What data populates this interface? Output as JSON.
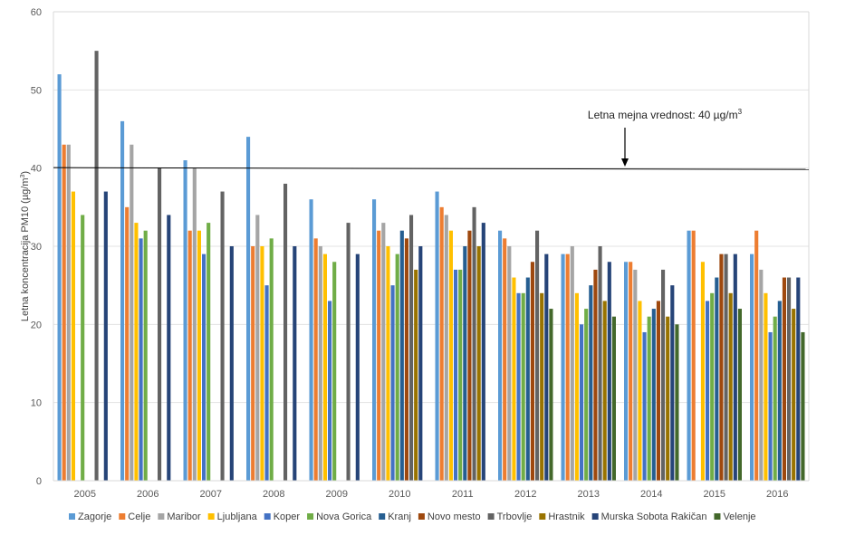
{
  "chart_data": {
    "type": "bar",
    "categories": [
      "2005",
      "2006",
      "2007",
      "2008",
      "2009",
      "2010",
      "2011",
      "2012",
      "2013",
      "2014",
      "2015",
      "2016"
    ],
    "ylabel_main": "Letna koncentracija PM10 (µg/m",
    "ylabel_sup": "3",
    "ylabel_end": ")",
    "ylim": [
      0,
      60
    ],
    "yticks": [
      "0",
      "10",
      "20",
      "30",
      "40",
      "50",
      "60"
    ],
    "grid": true,
    "legend_position": "bottom",
    "limit_line": {
      "value": 40,
      "label_main": "Letna mejna vrednost: 40 µg/m",
      "label_sup": "3"
    },
    "series": [
      {
        "name": "Zagorje",
        "color": "#5b9bd5",
        "values": [
          52,
          46,
          41,
          44,
          36,
          36,
          37,
          32,
          29,
          28,
          32,
          29
        ]
      },
      {
        "name": "Celje",
        "color": "#ed7d31",
        "values": [
          43,
          35,
          32,
          30,
          31,
          32,
          35,
          31,
          29,
          28,
          32,
          32
        ]
      },
      {
        "name": "Maribor",
        "color": "#a5a5a5",
        "values": [
          43,
          43,
          40,
          34,
          30,
          33,
          34,
          30,
          30,
          27,
          null,
          27
        ]
      },
      {
        "name": "Ljubljana",
        "color": "#ffc000",
        "values": [
          37,
          33,
          32,
          30,
          29,
          30,
          32,
          26,
          24,
          23,
          28,
          24
        ]
      },
      {
        "name": "Koper",
        "color": "#4472c4",
        "values": [
          null,
          31,
          29,
          25,
          23,
          25,
          27,
          24,
          20,
          19,
          23,
          19
        ]
      },
      {
        "name": "Nova Gorica",
        "color": "#70ad47",
        "values": [
          34,
          32,
          33,
          31,
          28,
          29,
          27,
          24,
          22,
          21,
          24,
          21
        ]
      },
      {
        "name": "Kranj",
        "color": "#255e91",
        "values": [
          null,
          null,
          null,
          null,
          null,
          32,
          30,
          26,
          25,
          22,
          26,
          23
        ]
      },
      {
        "name": "Novo mesto",
        "color": "#9e480e",
        "values": [
          null,
          null,
          null,
          null,
          null,
          31,
          32,
          28,
          27,
          23,
          29,
          26
        ]
      },
      {
        "name": "Trbovlje",
        "color": "#636363",
        "values": [
          55,
          40,
          37,
          38,
          33,
          34,
          35,
          32,
          30,
          27,
          29,
          26
        ]
      },
      {
        "name": "Hrastnik",
        "color": "#997300",
        "values": [
          null,
          null,
          null,
          null,
          null,
          27,
          30,
          24,
          23,
          21,
          24,
          22
        ]
      },
      {
        "name": "Murska Sobota Rakičan",
        "color": "#264478",
        "values": [
          37,
          34,
          30,
          30,
          29,
          30,
          33,
          29,
          28,
          25,
          29,
          26
        ]
      },
      {
        "name": "Velenje",
        "color": "#43682b",
        "values": [
          null,
          null,
          null,
          null,
          null,
          null,
          null,
          22,
          21,
          20,
          22,
          19
        ]
      }
    ]
  }
}
